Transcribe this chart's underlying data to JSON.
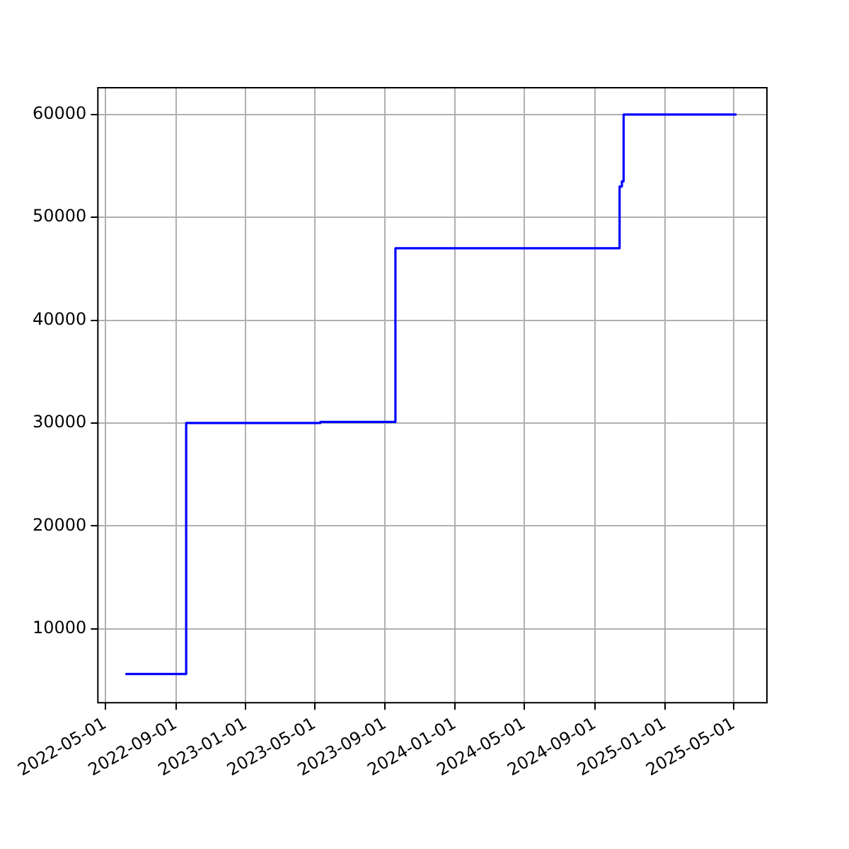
{
  "chart_data": {
    "type": "step",
    "x": [
      "2022-06-05",
      "2022-09-19",
      "2023-05-11",
      "2023-09-19",
      "2024-10-14",
      "2024-10-18",
      "2024-10-21",
      "2025-05-06"
    ],
    "series": [
      {
        "color": "#0000ff",
        "values": [
          5600,
          30000,
          30100,
          47000,
          53000,
          53500,
          60000,
          60000
        ]
      }
    ],
    "xlim": [
      "2022-04-18",
      "2025-06-28"
    ],
    "xticks": [
      "2022-05-01",
      "2022-09-01",
      "2023-01-01",
      "2023-05-01",
      "2023-09-01",
      "2024-01-01",
      "2024-05-01",
      "2024-09-01",
      "2025-01-01",
      "2025-05-01"
    ],
    "ylim": [
      2800,
      62600
    ],
    "yticks": [
      10000,
      20000,
      30000,
      40000,
      50000,
      60000
    ],
    "grid": true,
    "legend": false,
    "marker": "none",
    "line_style": "solid"
  }
}
